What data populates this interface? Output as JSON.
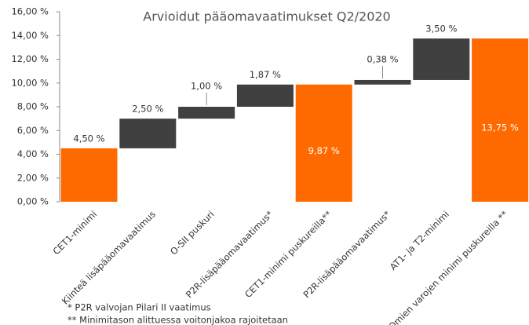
{
  "chart_data": {
    "type": "waterfall",
    "title": "Arvioidut pääomavaatimukset Q2/2020",
    "categories": [
      "CET1-minimi",
      "Kiinteä lisäpääomavaatimus",
      "O-SII puskuri",
      "P2R-lisäpääomavaatimus*",
      "CET1-minimi puskureilla**",
      "P2R-lisäpääomavaatimus*",
      "AT1- ja T2-minimi",
      "Omien varojen minimi puskureilla **"
    ],
    "values": [
      4.5,
      2.5,
      1.0,
      1.87,
      9.87,
      0.38,
      3.5,
      13.75
    ],
    "value_labels": [
      "4,50 %",
      "2,50 %",
      "1,00 %",
      "1,87 %",
      "9,87 %",
      "0,38 %",
      "3,50 %",
      "13,75 %"
    ],
    "colors": [
      "#ff6a00",
      "#404040",
      "#404040",
      "#404040",
      "#ff6a00",
      "#404040",
      "#404040",
      "#ff6a00"
    ],
    "ylim": [
      0,
      16
    ],
    "yticks": [
      {
        "value": 0,
        "label": "0,00 %"
      },
      {
        "value": 2,
        "label": "2,00 %"
      },
      {
        "value": 4,
        "label": "4,00 %"
      },
      {
        "value": 6,
        "label": "6,00 %"
      },
      {
        "value": 8,
        "label": "8,00 %"
      },
      {
        "value": 10,
        "label": "10,00 %"
      },
      {
        "value": 12,
        "label": "12,00 %"
      },
      {
        "value": 14,
        "label": "14,00 %"
      },
      {
        "value": 16,
        "label": "16,00 %"
      }
    ],
    "footnotes": [
      "* P2R valvojan Pilari II vaatimus",
      "** Minimitason alittuessa voitonjakoa rajoitetaan"
    ]
  }
}
